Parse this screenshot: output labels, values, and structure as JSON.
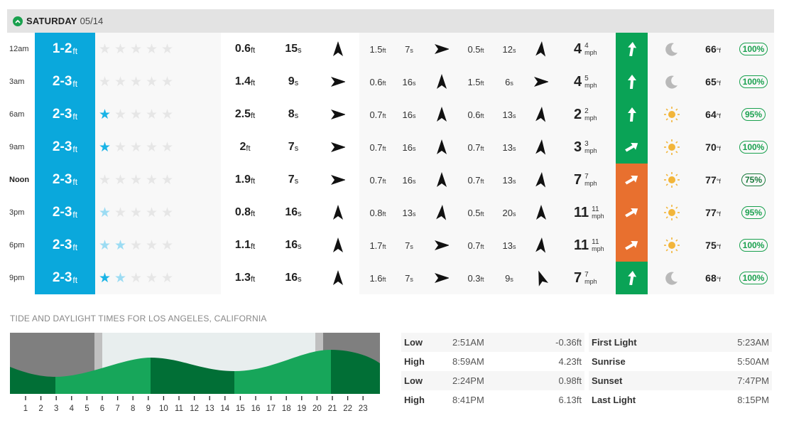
{
  "header": {
    "day_name": "SATURDAY",
    "day_date": "05/14",
    "icon": "chevron-up-icon"
  },
  "colors": {
    "surf_bg": "#0aa8dc",
    "wind_green": "#0aa356",
    "wind_orange": "#e8702f",
    "star_dark": "#1ab4e6",
    "star_light": "#9cdcf3",
    "star_empty": "#e6e6e6",
    "badge_green": "#1aa14f"
  },
  "rows": [
    {
      "time": "12am",
      "time_bold": false,
      "surf": "1-2",
      "surf_unit": "ft",
      "stars": [
        "empty",
        "empty",
        "empty",
        "empty",
        "empty"
      ],
      "primary": {
        "height": "0.6",
        "period": "15",
        "dir": 0
      },
      "secondary": {
        "height": "1.5",
        "period": "7",
        "dir": 90
      },
      "tertiary": {
        "height": "0.5",
        "period": "12",
        "dir": 5
      },
      "wind": {
        "speed": "4",
        "gust": "4",
        "unit": "mph",
        "color": "green",
        "dir": 5
      },
      "weather": "moon-icon",
      "temp": "66",
      "temp_unit": "°f",
      "prob": "100%",
      "prob_dark": false
    },
    {
      "time": "3am",
      "time_bold": false,
      "surf": "2-3",
      "surf_unit": "ft",
      "stars": [
        "empty",
        "empty",
        "empty",
        "empty",
        "empty"
      ],
      "primary": {
        "height": "1.4",
        "period": "9",
        "dir": 90
      },
      "secondary": {
        "height": "0.6",
        "period": "16",
        "dir": 0
      },
      "tertiary": {
        "height": "1.5",
        "period": "6",
        "dir": 90
      },
      "wind": {
        "speed": "4",
        "gust": "5",
        "unit": "mph",
        "color": "green",
        "dir": 0
      },
      "weather": "moon-icon",
      "temp": "65",
      "temp_unit": "°f",
      "prob": "100%",
      "prob_dark": false
    },
    {
      "time": "6am",
      "time_bold": false,
      "surf": "2-3",
      "surf_unit": "ft",
      "stars": [
        "dark",
        "empty",
        "empty",
        "empty",
        "empty"
      ],
      "primary": {
        "height": "2.5",
        "period": "8",
        "dir": 90
      },
      "secondary": {
        "height": "0.7",
        "period": "16",
        "dir": 0
      },
      "tertiary": {
        "height": "0.6",
        "period": "13",
        "dir": 5
      },
      "wind": {
        "speed": "2",
        "gust": "2",
        "unit": "mph",
        "color": "green",
        "dir": 0
      },
      "weather": "sun-icon",
      "temp": "64",
      "temp_unit": "°f",
      "prob": "95%",
      "prob_dark": false
    },
    {
      "time": "9am",
      "time_bold": false,
      "surf": "2-3",
      "surf_unit": "ft",
      "stars": [
        "dark",
        "empty",
        "empty",
        "empty",
        "empty"
      ],
      "primary": {
        "height": "2",
        "period": "7",
        "dir": 90
      },
      "secondary": {
        "height": "0.7",
        "period": "16",
        "dir": 0
      },
      "tertiary": {
        "height": "0.7",
        "period": "13",
        "dir": 5
      },
      "wind": {
        "speed": "3",
        "gust": "3",
        "unit": "mph",
        "color": "green",
        "dir": 55
      },
      "weather": "sun-icon",
      "temp": "70",
      "temp_unit": "°f",
      "prob": "100%",
      "prob_dark": false
    },
    {
      "time": "Noon",
      "time_bold": true,
      "surf": "2-3",
      "surf_unit": "ft",
      "stars": [
        "empty",
        "empty",
        "empty",
        "empty",
        "empty"
      ],
      "primary": {
        "height": "1.9",
        "period": "7",
        "dir": 90
      },
      "secondary": {
        "height": "0.7",
        "period": "16",
        "dir": 0
      },
      "tertiary": {
        "height": "0.7",
        "period": "13",
        "dir": 5
      },
      "wind": {
        "speed": "7",
        "gust": "7",
        "unit": "mph",
        "color": "orange",
        "dir": 55
      },
      "weather": "sun-icon",
      "temp": "77",
      "temp_unit": "°f",
      "prob": "75%",
      "prob_dark": true
    },
    {
      "time": "3pm",
      "time_bold": false,
      "surf": "2-3",
      "surf_unit": "ft",
      "stars": [
        "light",
        "empty",
        "empty",
        "empty",
        "empty"
      ],
      "primary": {
        "height": "0.8",
        "period": "16",
        "dir": 0
      },
      "secondary": {
        "height": "0.8",
        "period": "13",
        "dir": 5
      },
      "tertiary": {
        "height": "0.5",
        "period": "20",
        "dir": 0
      },
      "wind": {
        "speed": "11",
        "gust": "11",
        "unit": "mph",
        "color": "orange",
        "dir": 55
      },
      "weather": "sun-icon",
      "temp": "77",
      "temp_unit": "°f",
      "prob": "95%",
      "prob_dark": false
    },
    {
      "time": "6pm",
      "time_bold": false,
      "surf": "2-3",
      "surf_unit": "ft",
      "stars": [
        "light",
        "light",
        "empty",
        "empty",
        "empty"
      ],
      "primary": {
        "height": "1.1",
        "period": "16",
        "dir": 0
      },
      "secondary": {
        "height": "1.7",
        "period": "7",
        "dir": 90
      },
      "tertiary": {
        "height": "0.7",
        "period": "13",
        "dir": 5
      },
      "wind": {
        "speed": "11",
        "gust": "11",
        "unit": "mph",
        "color": "orange",
        "dir": 55
      },
      "weather": "sun-icon",
      "temp": "75",
      "temp_unit": "°f",
      "prob": "100%",
      "prob_dark": false
    },
    {
      "time": "9pm",
      "time_bold": false,
      "surf": "2-3",
      "surf_unit": "ft",
      "stars": [
        "dark",
        "light",
        "empty",
        "empty",
        "empty"
      ],
      "primary": {
        "height": "1.3",
        "period": "16",
        "dir": 0
      },
      "secondary": {
        "height": "1.6",
        "period": "7",
        "dir": 90
      },
      "tertiary": {
        "height": "0.3",
        "period": "9",
        "dir": -20
      },
      "wind": {
        "speed": "7",
        "gust": "7",
        "unit": "mph",
        "color": "green",
        "dir": 5
      },
      "weather": "moon-icon",
      "temp": "68",
      "temp_unit": "°f",
      "prob": "100%",
      "prob_dark": false
    }
  ],
  "tide": {
    "title": "TIDE AND DAYLIGHT TIMES FOR LOS ANGELES, CALIFORNIA",
    "hours": [
      "1",
      "2",
      "3",
      "4",
      "5",
      "6",
      "7",
      "8",
      "9",
      "10",
      "11",
      "12",
      "13",
      "14",
      "15",
      "16",
      "17",
      "18",
      "19",
      "20",
      "21",
      "22",
      "23"
    ],
    "tides": [
      {
        "type": "Low",
        "time": "2:51AM",
        "height": "-0.36ft"
      },
      {
        "type": "High",
        "time": "8:59AM",
        "height": "4.23ft"
      },
      {
        "type": "Low",
        "time": "2:24PM",
        "height": "0.98ft"
      },
      {
        "type": "High",
        "time": "8:41PM",
        "height": "6.13ft"
      }
    ],
    "daylight": [
      {
        "label": "First Light",
        "time": "5:23AM"
      },
      {
        "label": "Sunrise",
        "time": "5:50AM"
      },
      {
        "label": "Sunset",
        "time": "7:47PM"
      },
      {
        "label": "Last Light",
        "time": "8:15PM"
      }
    ]
  }
}
